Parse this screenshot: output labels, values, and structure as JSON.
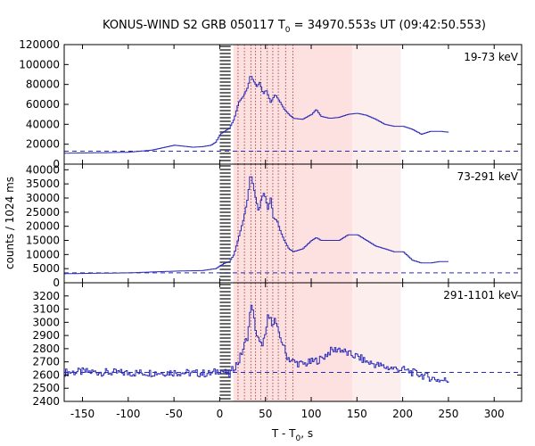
{
  "chart_data": {
    "type": "line",
    "title_prefix": "KONUS-WIND S2 GRB 050117 T",
    "title_sub": "0",
    "title_suffix": " = 34970.553s UT (09:42:50.553)",
    "xlabel_prefix": "T - T",
    "xlabel_sub": "0",
    "xlabel_suffix": ", s",
    "ylabel": "counts / 1024 ms",
    "xlim": [
      -170,
      330
    ],
    "xticks": [
      -150,
      -100,
      -50,
      0,
      50,
      100,
      150,
      200,
      250,
      300
    ],
    "grid": false,
    "shaded_intervals": [
      {
        "x0": 15,
        "x1": 145,
        "color": "#fde0e0"
      },
      {
        "x0": 145,
        "x1": 198,
        "color": "#fdeeee"
      }
    ],
    "hatched_interval": [
      0,
      12
    ],
    "dotted_lines_x": [
      20,
      27,
      34,
      39,
      45,
      52,
      58,
      64,
      72,
      80
    ],
    "line_color": "#2b2bb8",
    "panels": [
      {
        "label": "19-73 keV",
        "ylim": [
          0,
          120000
        ],
        "yticks": [
          0,
          20000,
          40000,
          60000,
          80000,
          100000,
          120000
        ],
        "background_level": 13000,
        "curve": [
          [
            -170,
            11000
          ],
          [
            -150,
            11200
          ],
          [
            -125,
            11500
          ],
          [
            -100,
            12000
          ],
          [
            -75,
            14000
          ],
          [
            -60,
            17000
          ],
          [
            -50,
            19000
          ],
          [
            -40,
            18000
          ],
          [
            -30,
            17000
          ],
          [
            -20,
            17500
          ],
          [
            -10,
            19000
          ],
          [
            -5,
            22000
          ],
          [
            0,
            30000
          ],
          [
            5,
            33000
          ],
          [
            10,
            36000
          ],
          [
            15,
            45000
          ],
          [
            20,
            62000
          ],
          [
            25,
            68000
          ],
          [
            30,
            77000
          ],
          [
            33,
            90000
          ],
          [
            36,
            84000
          ],
          [
            40,
            78000
          ],
          [
            43,
            82000
          ],
          [
            47,
            70000
          ],
          [
            50,
            75000
          ],
          [
            55,
            62000
          ],
          [
            60,
            70000
          ],
          [
            65,
            63000
          ],
          [
            70,
            55000
          ],
          [
            75,
            50000
          ],
          [
            80,
            46000
          ],
          [
            90,
            45000
          ],
          [
            100,
            50000
          ],
          [
            105,
            55000
          ],
          [
            110,
            48000
          ],
          [
            120,
            46000
          ],
          [
            130,
            47000
          ],
          [
            140,
            50000
          ],
          [
            150,
            51000
          ],
          [
            160,
            49000
          ],
          [
            170,
            45000
          ],
          [
            180,
            40000
          ],
          [
            190,
            38000
          ],
          [
            200,
            38000
          ],
          [
            210,
            35000
          ],
          [
            220,
            30000
          ],
          [
            230,
            33000
          ],
          [
            240,
            33000
          ],
          [
            250,
            32000
          ]
        ]
      },
      {
        "label": "73-291 keV",
        "ylim": [
          0,
          42000
        ],
        "yticks": [
          0,
          5000,
          10000,
          15000,
          20000,
          25000,
          30000,
          35000,
          40000
        ],
        "background_level": 3500,
        "curve": [
          [
            -170,
            3200
          ],
          [
            -150,
            3300
          ],
          [
            -100,
            3500
          ],
          [
            -60,
            4000
          ],
          [
            -40,
            4200
          ],
          [
            -20,
            4300
          ],
          [
            -5,
            5000
          ],
          [
            0,
            6000
          ],
          [
            5,
            7000
          ],
          [
            10,
            7500
          ],
          [
            15,
            10000
          ],
          [
            20,
            16000
          ],
          [
            25,
            22000
          ],
          [
            30,
            30000
          ],
          [
            33,
            39000
          ],
          [
            35,
            36000
          ],
          [
            38,
            31000
          ],
          [
            42,
            25000
          ],
          [
            45,
            30000
          ],
          [
            48,
            32000
          ],
          [
            52,
            26000
          ],
          [
            55,
            30000
          ],
          [
            58,
            23000
          ],
          [
            62,
            22000
          ],
          [
            66,
            18000
          ],
          [
            70,
            15000
          ],
          [
            75,
            12000
          ],
          [
            80,
            11000
          ],
          [
            90,
            12000
          ],
          [
            100,
            15000
          ],
          [
            105,
            16000
          ],
          [
            110,
            15000
          ],
          [
            120,
            15000
          ],
          [
            130,
            15000
          ],
          [
            140,
            17000
          ],
          [
            150,
            17000
          ],
          [
            160,
            15000
          ],
          [
            170,
            13000
          ],
          [
            180,
            12000
          ],
          [
            190,
            11000
          ],
          [
            200,
            11000
          ],
          [
            210,
            8000
          ],
          [
            220,
            7000
          ],
          [
            230,
            7000
          ],
          [
            240,
            7500
          ],
          [
            250,
            7500
          ]
        ]
      },
      {
        "label": "291-1101 keV",
        "ylim": [
          2400,
          3300
        ],
        "yticks": [
          2400,
          2500,
          2600,
          2700,
          2800,
          2900,
          3000,
          3100,
          3200
        ],
        "background_level": 2620,
        "noise_amplitude": 30,
        "curve": [
          [
            -170,
            2620
          ],
          [
            -150,
            2625
          ],
          [
            -100,
            2615
          ],
          [
            -50,
            2620
          ],
          [
            -10,
            2610
          ],
          [
            0,
            2640
          ],
          [
            5,
            2620
          ],
          [
            10,
            2600
          ],
          [
            15,
            2660
          ],
          [
            20,
            2700
          ],
          [
            25,
            2800
          ],
          [
            30,
            2900
          ],
          [
            34,
            3150
          ],
          [
            36,
            3050
          ],
          [
            40,
            2900
          ],
          [
            44,
            2820
          ],
          [
            50,
            2900
          ],
          [
            52,
            3050
          ],
          [
            56,
            3000
          ],
          [
            60,
            3020
          ],
          [
            64,
            2900
          ],
          [
            68,
            2850
          ],
          [
            72,
            2750
          ],
          [
            76,
            2720
          ],
          [
            80,
            2700
          ],
          [
            90,
            2680
          ],
          [
            100,
            2700
          ],
          [
            110,
            2720
          ],
          [
            120,
            2780
          ],
          [
            130,
            2800
          ],
          [
            140,
            2760
          ],
          [
            150,
            2740
          ],
          [
            160,
            2700
          ],
          [
            170,
            2680
          ],
          [
            180,
            2660
          ],
          [
            190,
            2650
          ],
          [
            200,
            2640
          ],
          [
            210,
            2620
          ],
          [
            220,
            2600
          ],
          [
            230,
            2580
          ],
          [
            240,
            2560
          ],
          [
            250,
            2560
          ]
        ]
      }
    ]
  }
}
